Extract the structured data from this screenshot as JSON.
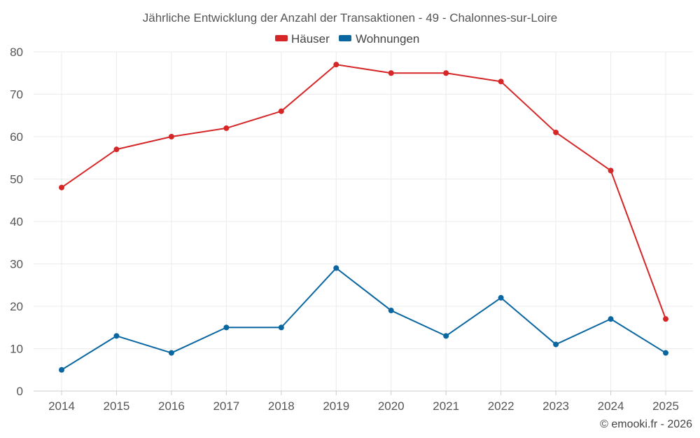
{
  "chart_data": {
    "type": "line",
    "title": "Jährliche Entwicklung der Anzahl der Transaktionen - 49 - Chalonnes-sur-Loire",
    "categories": [
      "2014",
      "2015",
      "2016",
      "2017",
      "2018",
      "2019",
      "2020",
      "2021",
      "2022",
      "2023",
      "2024",
      "2025"
    ],
    "series": [
      {
        "name": "Häuser",
        "color": "#d62728",
        "values": [
          48,
          57,
          60,
          62,
          66,
          77,
          75,
          75,
          73,
          61,
          52,
          17
        ]
      },
      {
        "name": "Wohnungen",
        "color": "#0a66a0",
        "values": [
          5,
          13,
          9,
          15,
          15,
          29,
          19,
          13,
          22,
          11,
          17,
          9
        ]
      }
    ],
    "ylim": [
      0,
      80
    ],
    "yticks": [
      0,
      10,
      20,
      30,
      40,
      50,
      60,
      70,
      80
    ],
    "xlabel": "",
    "ylabel": "",
    "grid": true,
    "legend": "top-center"
  },
  "credit": "© emooki.fr - 2026"
}
